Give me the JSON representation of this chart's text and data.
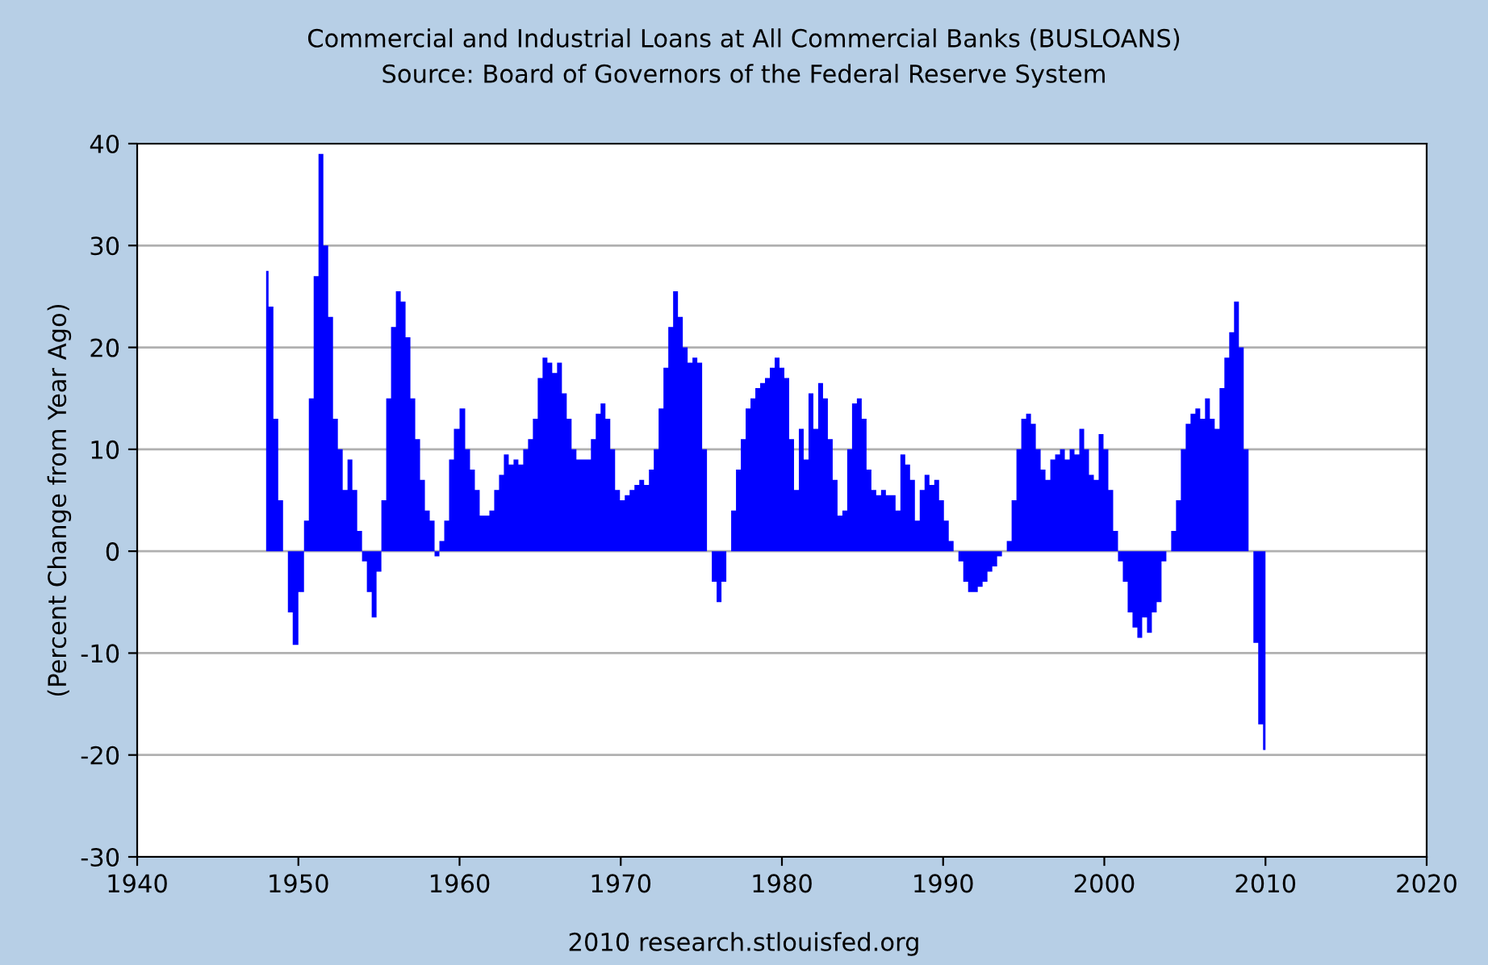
{
  "chart_data": {
    "type": "area",
    "title": "Commercial and Industrial Loans at All Commercial Banks (BUSLOANS)",
    "subtitle": "Source: Board of Governors of the Federal Reserve System",
    "ylabel": "(Percent Change from Year Ago)",
    "annotations": [
      "2010 research.stlouisfed.org"
    ],
    "xlim": [
      1940,
      2020
    ],
    "xticks": [
      1940,
      1950,
      1960,
      1970,
      1980,
      1990,
      2000,
      2010,
      2020
    ],
    "ylim": [
      -30,
      40
    ],
    "yticks": [
      -30,
      -20,
      -10,
      0,
      10,
      20,
      30,
      40
    ],
    "grid": "y",
    "series": [
      {
        "color": "#0000ff",
        "x": [
          1948.0,
          1948.3,
          1948.6,
          1948.9,
          1949.2,
          1949.5,
          1949.8,
          1950.2,
          1950.5,
          1950.8,
          1951.1,
          1951.4,
          1951.7,
          1952.0,
          1952.3,
          1952.6,
          1952.9,
          1953.2,
          1953.5,
          1953.8,
          1954.1,
          1954.4,
          1954.7,
          1955.0,
          1955.3,
          1955.6,
          1955.9,
          1956.2,
          1956.5,
          1956.8,
          1957.1,
          1957.4,
          1957.7,
          1958.0,
          1958.3,
          1958.6,
          1958.9,
          1959.2,
          1959.5,
          1959.8,
          1960.2,
          1960.5,
          1960.8,
          1961.1,
          1961.4,
          1961.7,
          1962.0,
          1962.3,
          1962.6,
          1962.9,
          1963.2,
          1963.5,
          1963.8,
          1964.1,
          1964.4,
          1964.7,
          1965.0,
          1965.3,
          1965.6,
          1965.9,
          1966.2,
          1966.5,
          1966.8,
          1967.1,
          1967.4,
          1967.7,
          1968.0,
          1968.3,
          1968.6,
          1968.9,
          1969.2,
          1969.5,
          1969.8,
          1970.1,
          1970.4,
          1970.7,
          1971.0,
          1971.3,
          1971.6,
          1971.9,
          1972.2,
          1972.5,
          1972.8,
          1973.1,
          1973.4,
          1973.7,
          1974.0,
          1974.3,
          1974.6,
          1974.9,
          1975.2,
          1975.5,
          1975.8,
          1976.1,
          1976.4,
          1976.7,
          1977.0,
          1977.3,
          1977.6,
          1977.9,
          1978.2,
          1978.5,
          1978.8,
          1979.1,
          1979.4,
          1979.7,
          1980.0,
          1980.3,
          1980.6,
          1980.9,
          1981.2,
          1981.5,
          1981.8,
          1982.1,
          1982.4,
          1982.7,
          1983.0,
          1983.3,
          1983.6,
          1983.9,
          1984.2,
          1984.5,
          1984.8,
          1985.1,
          1985.4,
          1985.7,
          1986.0,
          1986.3,
          1986.6,
          1986.9,
          1987.2,
          1987.5,
          1987.8,
          1988.1,
          1988.4,
          1988.7,
          1989.0,
          1989.3,
          1989.6,
          1989.9,
          1990.2,
          1990.5,
          1990.8,
          1991.1,
          1991.4,
          1991.7,
          1992.0,
          1992.3,
          1992.6,
          1992.9,
          1993.2,
          1993.5,
          1993.8,
          1994.1,
          1994.4,
          1994.7,
          1995.0,
          1995.3,
          1995.6,
          1995.9,
          1996.2,
          1996.5,
          1996.8,
          1997.1,
          1997.4,
          1997.7,
          1998.0,
          1998.3,
          1998.6,
          1998.9,
          1999.2,
          1999.5,
          1999.8,
          2000.1,
          2000.4,
          2000.7,
          2001.0,
          2001.3,
          2001.6,
          2001.9,
          2002.2,
          2002.5,
          2002.8,
          2003.1,
          2003.4,
          2003.7,
          2004.0,
          2004.3,
          2004.6,
          2004.9,
          2005.2,
          2005.5,
          2005.8,
          2006.1,
          2006.4,
          2006.7,
          2007.0,
          2007.3,
          2007.6,
          2007.9,
          2008.2,
          2008.5,
          2008.8,
          2009.1,
          2009.4,
          2009.7,
          2010.0
        ],
        "values": [
          27.5,
          24,
          13,
          5,
          0,
          -6,
          -9.2,
          -4,
          3,
          15,
          27,
          39,
          30,
          23,
          13,
          10,
          6,
          9,
          6,
          2,
          -1,
          -4,
          -6.5,
          -2,
          5,
          15,
          22,
          25.5,
          24.5,
          21,
          15,
          11,
          7,
          4,
          3,
          -0.5,
          1,
          3,
          9,
          12,
          14,
          10,
          8,
          6,
          3.5,
          3.5,
          4,
          6,
          7.5,
          9.5,
          8.5,
          9,
          8.5,
          10,
          11,
          13,
          17,
          19,
          18.5,
          17.5,
          18.5,
          15.5,
          13,
          10,
          9,
          9,
          9,
          11,
          13.5,
          14.5,
          13,
          10,
          6,
          5,
          5.5,
          6,
          6.5,
          7,
          6.5,
          8,
          10,
          14,
          18,
          22,
          25.5,
          23,
          20,
          18.5,
          19,
          18.5,
          10,
          0,
          -3,
          -5,
          -3,
          0,
          4,
          8,
          11,
          14,
          15,
          16,
          16.5,
          17,
          18,
          19,
          18,
          17,
          11,
          6,
          12,
          9,
          15.5,
          12,
          16.5,
          15,
          11,
          7,
          3.5,
          4,
          10,
          14.5,
          15,
          13,
          8,
          6,
          5.5,
          6,
          5.5,
          5.5,
          4,
          9.5,
          8.5,
          7,
          3,
          6,
          7.5,
          6.5,
          7,
          5,
          3,
          1,
          0,
          -1,
          -3,
          -4,
          -4,
          -3.5,
          -3,
          -2,
          -1.5,
          -0.5,
          0,
          1,
          5,
          10,
          13,
          13.5,
          12.5,
          10,
          8,
          7,
          9,
          9.5,
          10,
          9,
          10,
          9.5,
          12,
          10,
          7.5,
          7,
          11.5,
          10,
          6,
          2,
          -1,
          -3,
          -6,
          -7.5,
          -8.5,
          -6.5,
          -8,
          -6,
          -5,
          -1,
          0,
          2,
          5,
          10,
          12.5,
          13.5,
          14,
          13,
          15,
          13,
          12,
          16,
          19,
          21.5,
          24.5,
          20,
          10,
          0,
          -9,
          -17,
          -19.5
        ]
      }
    ]
  }
}
